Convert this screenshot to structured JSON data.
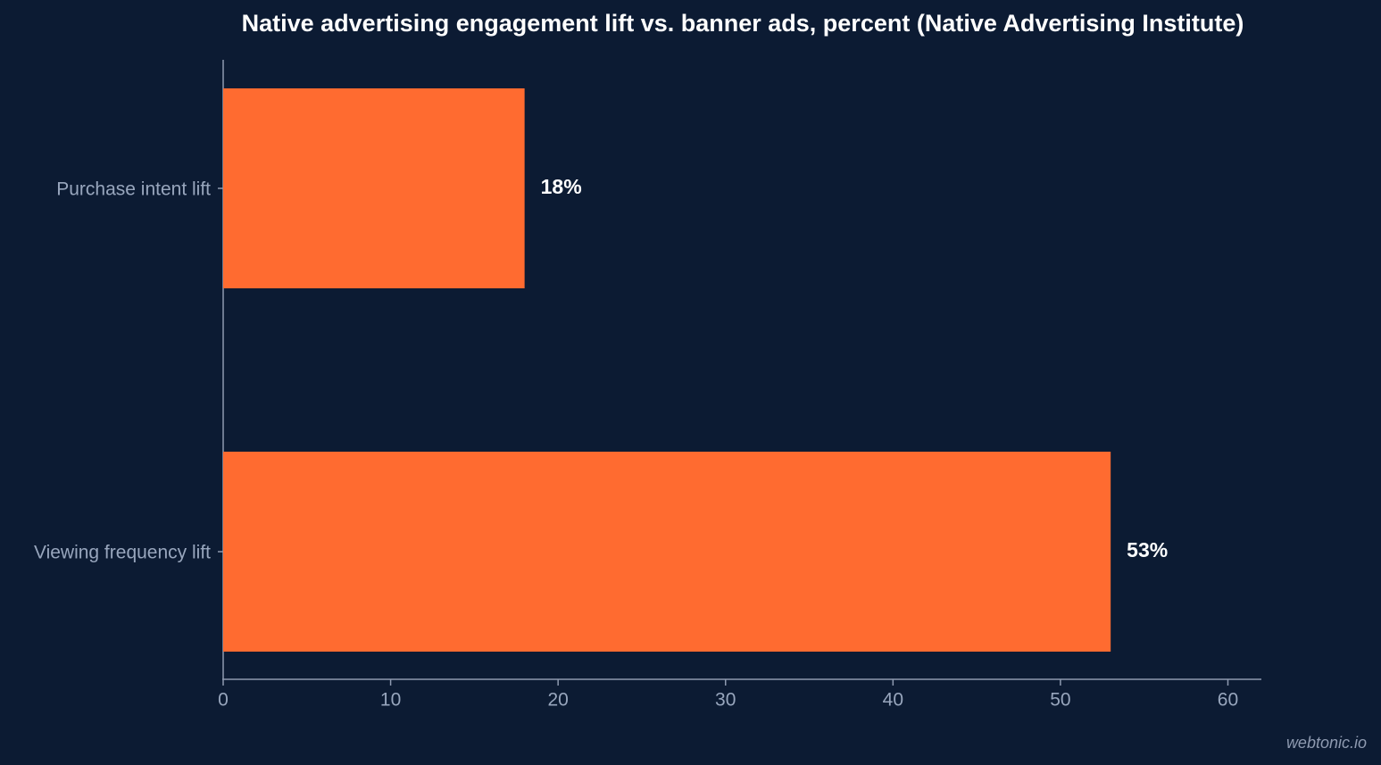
{
  "chart_data": {
    "type": "bar",
    "orientation": "horizontal",
    "title": "Native advertising engagement lift vs. banner ads, percent (Native Advertising Institute)",
    "categories": [
      "Purchase intent lift",
      "Viewing frequency lift"
    ],
    "values": [
      18,
      53
    ],
    "value_labels": [
      "18%",
      "53%"
    ],
    "color": "#ff6b30",
    "xlim": [
      0,
      62
    ],
    "xticks": [
      0,
      10,
      20,
      30,
      40,
      50,
      60
    ],
    "grid": false,
    "watermark": "webtonic.io"
  }
}
